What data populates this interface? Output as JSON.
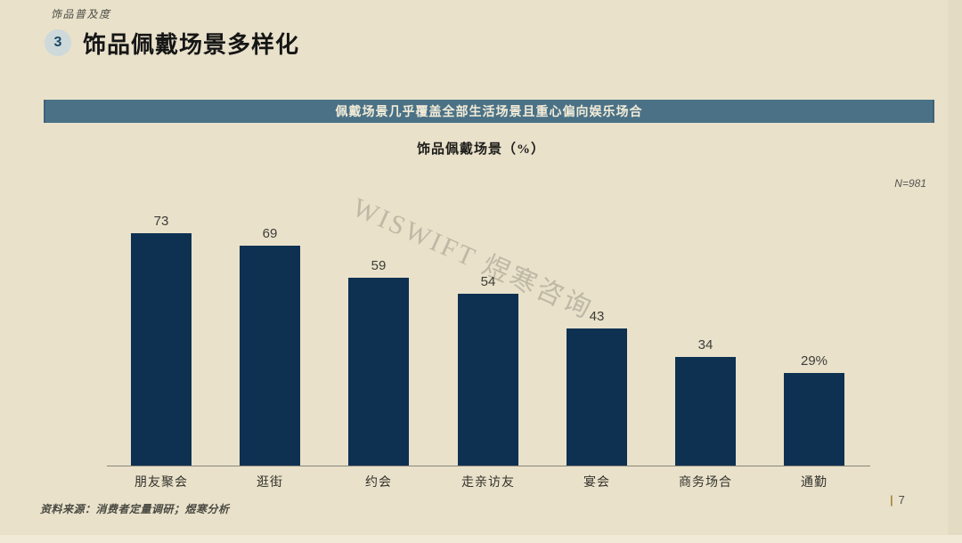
{
  "page": {
    "eyebrow": "饰品普及度",
    "section_number": "3",
    "title": "饰品佩戴场景多样化",
    "banner": "佩戴场景几乎覆盖全部生活场景且重心偏向娱乐场合",
    "watermark": "WISWIFT 煜寒咨询",
    "source": "资料来源：消费者定量调研；煜寒分析",
    "page_separator": "|",
    "page_number": "7",
    "colors": {
      "background": "#e9e1ca",
      "banner": "#4a7186",
      "banner_text": "#f2ecd8",
      "bar": "#0e3152",
      "watermark": "#b5ae9d",
      "page_separator": "#a5873d"
    }
  },
  "chart_data": {
    "type": "bar",
    "title": "饰品佩戴场景（%）",
    "sample_label": "N=981",
    "categories": [
      "朋友聚会",
      "逛街",
      "约会",
      "走亲访友",
      "宴会",
      "商务场合",
      "通勤"
    ],
    "values": [
      73,
      69,
      59,
      54,
      43,
      34,
      29
    ],
    "value_labels": [
      "73",
      "69",
      "59",
      "54",
      "43",
      "34",
      "29%"
    ],
    "unit": "%",
    "ylim": [
      0,
      80
    ],
    "grid": false,
    "legend": false,
    "xlabel": "",
    "ylabel": ""
  }
}
